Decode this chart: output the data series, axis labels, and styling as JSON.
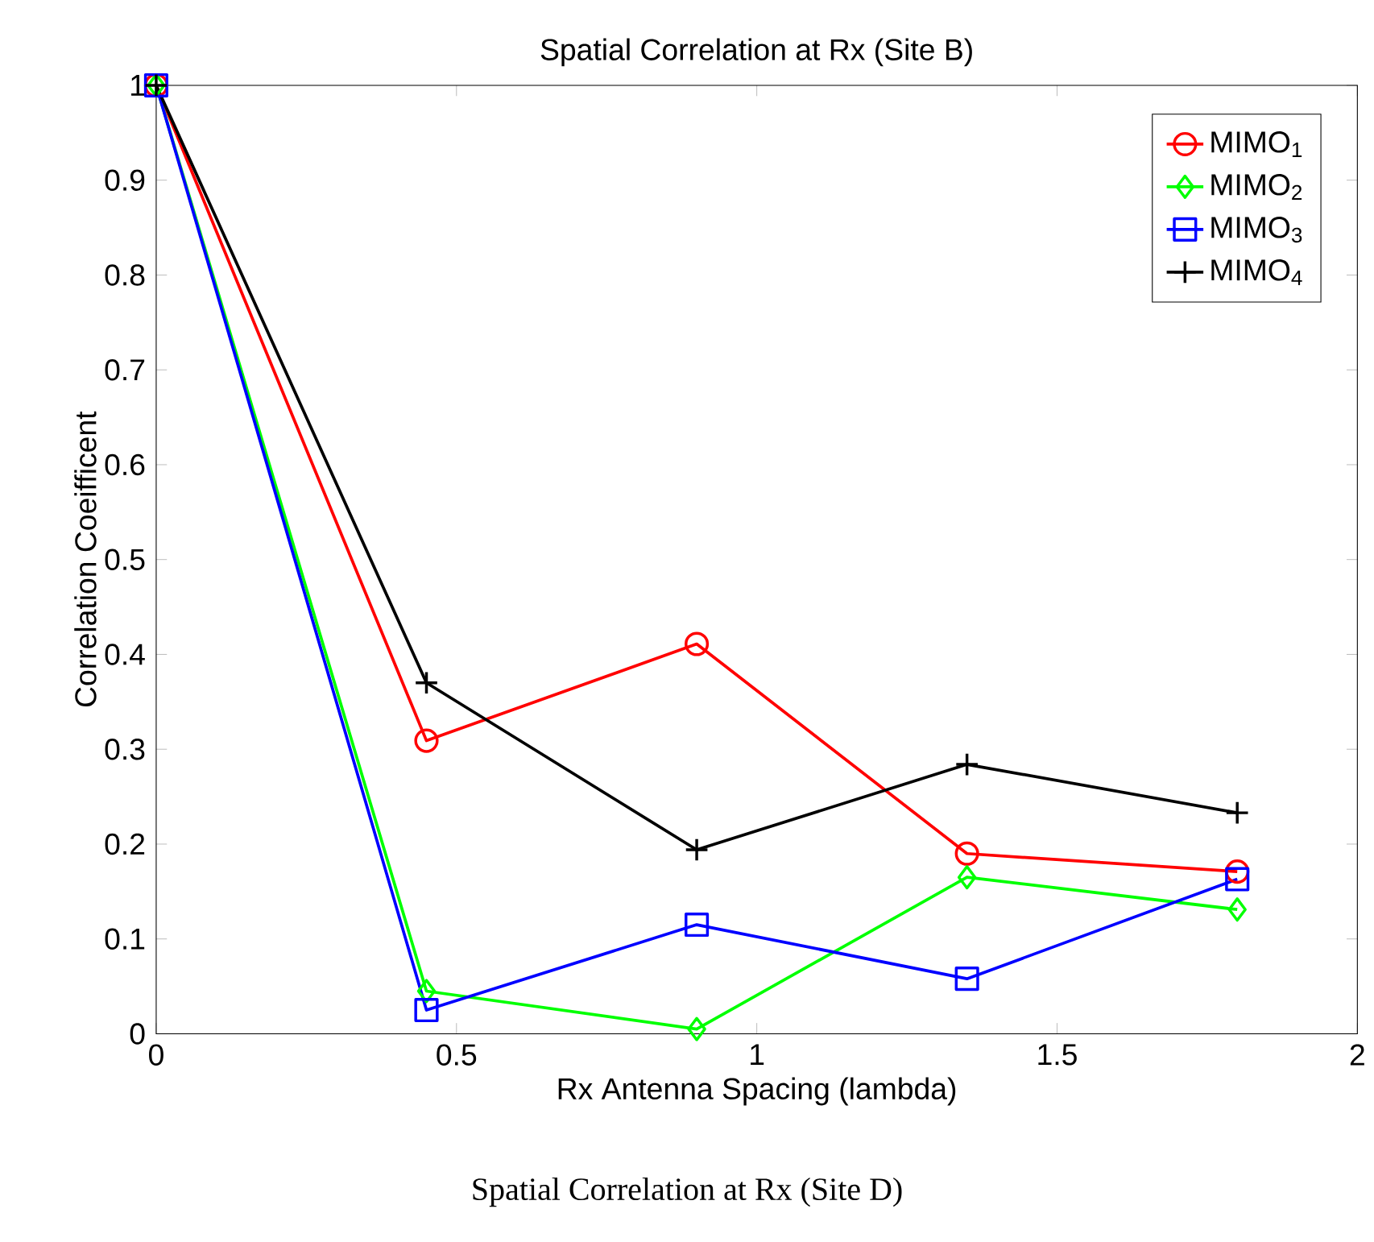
{
  "chart_data": {
    "type": "line",
    "title": "Spatial Correlation at Rx (Site B)",
    "xlabel": "Rx Antenna Spacing (lambda)",
    "ylabel": "Correlation Coeifficent",
    "x": [
      0,
      0.45,
      0.9,
      1.35,
      1.8
    ],
    "series": [
      {
        "name": "MIMO$_{1}$",
        "color": "#ff0000",
        "marker": "circle",
        "values": [
          1,
          0.309,
          0.411,
          0.19,
          0.171
        ]
      },
      {
        "name": "MIMO$_{2}$",
        "color": "#00ff00",
        "marker": "diamond",
        "values": [
          1,
          0.045,
          0.005,
          0.165,
          0.131
        ]
      },
      {
        "name": "MIMO$_{3}$",
        "color": "#0000ff",
        "marker": "square",
        "values": [
          1,
          0.025,
          0.115,
          0.058,
          0.163
        ]
      },
      {
        "name": "MIMO$_{4}$",
        "color": "#000000",
        "marker": "cross",
        "values": [
          1,
          0.37,
          0.194,
          0.284,
          0.233
        ]
      }
    ],
    "xlim": [
      0,
      2
    ],
    "ylim": [
      0,
      1
    ],
    "xticks": [
      0,
      0.5,
      1,
      1.5,
      2
    ],
    "yticks": [
      0,
      0.1,
      0.2,
      0.3,
      0.4,
      0.5,
      0.6,
      0.7,
      0.8,
      0.9,
      1
    ],
    "grid": false,
    "legend": "top right",
    "line_style": "solid",
    "annotations": [
      "Spatial Correlation at Rx (Site D)"
    ]
  }
}
